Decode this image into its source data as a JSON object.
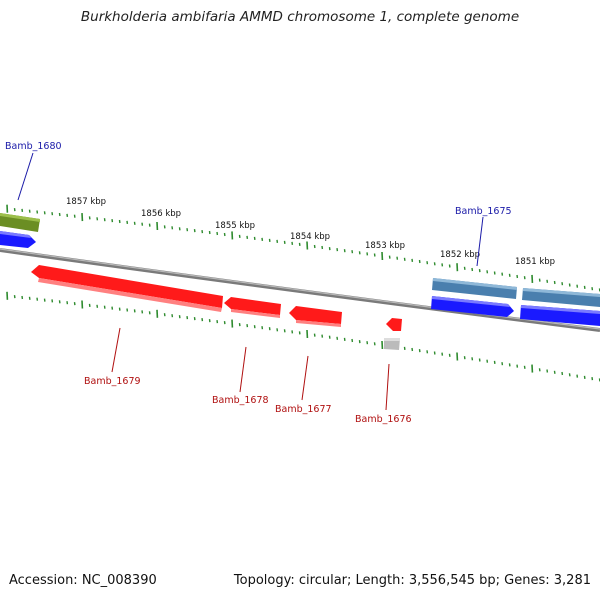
{
  "title": "Burkholderia ambifaria AMMD chromosome 1, complete genome",
  "footer": {
    "accession": "Accession: NC_008390",
    "summary": "Topology: circular; Length: 3,556,545 bp; Genes: 3,281"
  },
  "kbp_labels": [
    "1857 kbp",
    "1856 kbp",
    "1855 kbp",
    "1854 kbp",
    "1853 kbp",
    "1852 kbp",
    "1851 kbp"
  ],
  "genes": [
    {
      "name": "Bamb_1680",
      "label_color": "#1a1aa8"
    },
    {
      "name": "Bamb_1679",
      "label_color": "#b01010"
    },
    {
      "name": "Bamb_1678",
      "label_color": "#b01010"
    },
    {
      "name": "Bamb_1677",
      "label_color": "#b01010"
    },
    {
      "name": "Bamb_1676",
      "label_color": "#b01010"
    },
    {
      "name": "Bamb_1675",
      "label_color": "#1a1aa8"
    }
  ],
  "colors": {
    "tick": "#2e8b2e",
    "backbone": "#7a7a7a",
    "reverse_cds": "#ff1a1a",
    "forward_cds": "#1a1aff",
    "gene_forward": "#4a7fae",
    "gene_other": "#6b8e23",
    "rna": "#bbbbbb"
  }
}
